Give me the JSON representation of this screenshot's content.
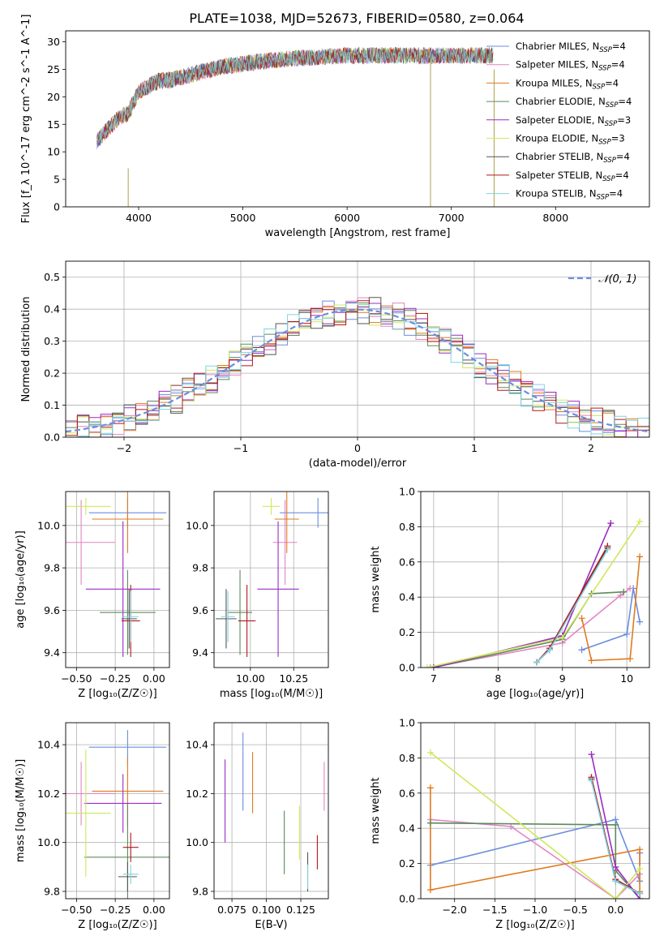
{
  "figure": {
    "title": "PLATE=1038, MJD=52673, FIBERID=0580, z=0.064"
  },
  "series_colors": {
    "Chabrier MILES": "#6b8ede",
    "Salpeter MILES": "#e384c4",
    "Kroupa MILES": "#e07a1f",
    "Chabrier ELODIE": "#5c8a5c",
    "Salpeter ELODIE": "#9b2cc4",
    "Kroupa ELODIE": "#cfe85a",
    "Chabrier STELIB": "#555555",
    "Salpeter STELIB": "#b01818",
    "Kroupa STELIB": "#7fd3e0"
  },
  "chart_data": [
    {
      "id": "spectrum",
      "type": "line",
      "title": "PLATE=1038, MJD=52673, FIBERID=0580, z=0.064",
      "xlabel": "wavelength [Angstrom, rest frame]",
      "ylabel": "Flux [f_λ 10^-17 erg cm^-2 s^-1 A^-1]",
      "xlim": [
        3300,
        8900
      ],
      "ylim": [
        0,
        32
      ],
      "xticks": [
        4000,
        5000,
        6000,
        7000,
        8000
      ],
      "yticks": [
        0,
        5,
        10,
        15,
        20,
        25,
        30
      ],
      "grid": false,
      "legend_position": "right",
      "legend": [
        {
          "label": "Chabrier MILES, N",
          "sub": "SSP",
          "suffix": "=4",
          "color": "#6b8ede"
        },
        {
          "label": "Salpeter MILES, N",
          "sub": "SSP",
          "suffix": "=4",
          "color": "#e384c4"
        },
        {
          "label": "Kroupa MILES, N",
          "sub": "SSP",
          "suffix": "=4",
          "color": "#e07a1f"
        },
        {
          "label": "Chabrier ELODIE, N",
          "sub": "SSP",
          "suffix": "=4",
          "color": "#5c8a5c"
        },
        {
          "label": "Salpeter ELODIE, N",
          "sub": "SSP",
          "suffix": "=3",
          "color": "#9b2cc4"
        },
        {
          "label": "Kroupa ELODIE, N",
          "sub": "SSP",
          "suffix": "=3",
          "color": "#cfe85a"
        },
        {
          "label": "Chabrier STELIB, N",
          "sub": "SSP",
          "suffix": "=4",
          "color": "#555555"
        },
        {
          "label": "Salpeter STELIB, N",
          "sub": "SSP",
          "suffix": "=4",
          "color": "#b01818"
        },
        {
          "label": "Kroupa STELIB, N",
          "sub": "SSP",
          "suffix": "=4",
          "color": "#7fd3e0"
        }
      ],
      "continuum_x": [
        3600,
        3700,
        3800,
        3900,
        4000,
        4100,
        4200,
        4300,
        4500,
        4800,
        5000,
        5200,
        5500,
        6000,
        6500,
        7000,
        7400
      ],
      "continuum_y": [
        12,
        14,
        16,
        17,
        21,
        22,
        23,
        23,
        24,
        25.5,
        26,
        26.5,
        27,
        27.5,
        27.5,
        27.5,
        27.5
      ],
      "noise_amplitude": 1.5,
      "artifacts": [
        {
          "x": 3900,
          "y_min": 0,
          "y_max": 7
        },
        {
          "x": 6800,
          "y_min": 0,
          "y_max": 27
        },
        {
          "x": 7410,
          "y_min": 0,
          "y_max": 25
        }
      ]
    },
    {
      "id": "residuals",
      "type": "step",
      "xlabel": "(data-model)/error",
      "ylabel": "Normed distribution",
      "xlim": [
        -2.5,
        2.5
      ],
      "ylim": [
        0,
        0.55
      ],
      "xticks": [
        -2,
        -1,
        0,
        1,
        2
      ],
      "xtick_labels": [
        "−2",
        "−1",
        "0",
        "1",
        "2"
      ],
      "yticks": [
        0,
        0.1,
        0.2,
        0.3,
        0.4,
        0.5
      ],
      "ytick_labels": [
        "0.0",
        "0.1",
        "0.2",
        "0.3",
        "0.4",
        "0.5"
      ],
      "grid": true,
      "bin_width": 0.1,
      "bin_start": -2.5,
      "reference_curve": {
        "label": "𝒩(0, 1)",
        "mean": 0,
        "sigma": 1,
        "color": "#6b8ede",
        "dashed": true
      },
      "legend_position": "top-right"
    },
    {
      "id": "age_vs_Z",
      "type": "errorbar",
      "xlabel": "Z [log₁₀(Z/Z☉)]",
      "ylabel": "age  [log₁₀(age/yr)]",
      "xlim": [
        -0.57,
        0.1
      ],
      "ylim": [
        9.33,
        10.16
      ],
      "xticks": [
        -0.5,
        -0.25,
        0
      ],
      "xtick_labels": [
        "−0.50",
        "−0.25",
        "0.00"
      ],
      "yticks": [
        9.4,
        9.6,
        9.8,
        10.0
      ],
      "ytick_labels": [
        "9.4",
        "9.6",
        "9.8",
        "10.0"
      ],
      "grid": true,
      "points": [
        {
          "series": "Chabrier MILES",
          "x": -0.17,
          "xerr": 0.25,
          "y": 10.06,
          "yerr": 0.07
        },
        {
          "series": "Salpeter MILES",
          "x": -0.47,
          "xerr": 0.22,
          "y": 9.92,
          "yerr": 0.2
        },
        {
          "series": "Kroupa MILES",
          "x": -0.17,
          "xerr": 0.23,
          "y": 10.03,
          "yerr": 0.16
        },
        {
          "series": "Chabrier ELODIE",
          "x": -0.17,
          "xerr": 0.18,
          "y": 9.59,
          "yerr": 0.2
        },
        {
          "series": "Salpeter ELODIE",
          "x": -0.2,
          "xerr": 0.24,
          "y": 9.7,
          "yerr": 0.32
        },
        {
          "series": "Kroupa ELODIE",
          "x": -0.44,
          "xerr": 0.16,
          "y": 10.09,
          "yerr": 0.04
        },
        {
          "series": "Chabrier STELIB",
          "x": -0.16,
          "xerr": 0.05,
          "y": 9.56,
          "yerr": 0.14
        },
        {
          "series": "Salpeter STELIB",
          "x": -0.15,
          "xerr": 0.06,
          "y": 9.55,
          "yerr": 0.17
        },
        {
          "series": "Kroupa STELIB",
          "x": -0.15,
          "xerr": 0.05,
          "y": 9.57,
          "yerr": 0.12
        }
      ]
    },
    {
      "id": "age_vs_mass",
      "type": "errorbar",
      "xlabel": "mass [log₁₀(M/M☉)]",
      "ylabel": "",
      "xlim": [
        9.79,
        10.45
      ],
      "ylim": [
        9.33,
        10.16
      ],
      "xticks": [
        10.0,
        10.25
      ],
      "xtick_labels": [
        "10.00",
        "10.25"
      ],
      "yticks": [
        9.4,
        9.6,
        9.8,
        10.0
      ],
      "ytick_labels": [
        "9.4",
        "9.6",
        "9.8",
        "10.0"
      ],
      "grid": true,
      "points": [
        {
          "series": "Chabrier MILES",
          "x": 10.39,
          "xerr": 0.22,
          "y": 10.06,
          "yerr": 0.07
        },
        {
          "series": "Salpeter MILES",
          "x": 10.2,
          "xerr": 0.07,
          "y": 9.92,
          "yerr": 0.2
        },
        {
          "series": "Kroupa MILES",
          "x": 10.21,
          "xerr": 0.07,
          "y": 10.03,
          "yerr": 0.16
        },
        {
          "series": "Chabrier ELODIE",
          "x": 9.94,
          "xerr": 0.07,
          "y": 9.59,
          "yerr": 0.2
        },
        {
          "series": "Salpeter ELODIE",
          "x": 10.16,
          "xerr": 0.12,
          "y": 9.7,
          "yerr": 0.32
        },
        {
          "series": "Kroupa ELODIE",
          "x": 10.12,
          "xerr": 0.05,
          "y": 10.09,
          "yerr": 0.04
        },
        {
          "series": "Chabrier STELIB",
          "x": 9.86,
          "xerr": 0.06,
          "y": 9.56,
          "yerr": 0.14
        },
        {
          "series": "Salpeter STELIB",
          "x": 9.98,
          "xerr": 0.05,
          "y": 9.55,
          "yerr": 0.17
        },
        {
          "series": "Kroupa STELIB",
          "x": 9.87,
          "xerr": 0.04,
          "y": 9.57,
          "yerr": 0.12
        }
      ]
    },
    {
      "id": "weight_vs_age",
      "type": "line",
      "xlabel": "age  [log₁₀(age/yr)]",
      "ylabel": "mass weight",
      "xlim": [
        6.8,
        10.35
      ],
      "ylim": [
        0,
        1
      ],
      "xticks": [
        7,
        8,
        9,
        10
      ],
      "yticks": [
        0,
        0.2,
        0.4,
        0.6,
        0.8,
        1.0
      ],
      "ytick_labels": [
        "0.0",
        "0.2",
        "0.4",
        "0.6",
        "0.8",
        "1.0"
      ],
      "grid": true,
      "series": [
        {
          "name": "Chabrier MILES",
          "x": [
            9.3,
            10.0,
            10.1,
            10.2
          ],
          "y": [
            0.1,
            0.19,
            0.45,
            0.26
          ]
        },
        {
          "name": "Salpeter MILES",
          "x": [
            6.95,
            9.0,
            9.9,
            10.05
          ],
          "y": [
            0.0,
            0.14,
            0.41,
            0.45
          ]
        },
        {
          "name": "Kroupa MILES",
          "x": [
            9.3,
            9.45,
            10.05,
            10.2
          ],
          "y": [
            0.28,
            0.04,
            0.05,
            0.63
          ]
        },
        {
          "name": "Chabrier ELODIE",
          "x": [
            7.0,
            9.0,
            9.45,
            9.95
          ],
          "y": [
            0.0,
            0.16,
            0.42,
            0.43
          ]
        },
        {
          "name": "Salpeter ELODIE",
          "x": [
            7.0,
            9.0,
            9.75
          ],
          "y": [
            0.0,
            0.18,
            0.82
          ]
        },
        {
          "name": "Kroupa ELODIE",
          "x": [
            6.9,
            9.0,
            10.2
          ],
          "y": [
            0.0,
            0.17,
            0.83
          ]
        },
        {
          "name": "Chabrier STELIB",
          "x": [
            8.6,
            8.8,
            9.7
          ],
          "y": [
            0.03,
            0.1,
            0.68
          ]
        },
        {
          "name": "Salpeter STELIB",
          "x": [
            8.6,
            8.8,
            9.7
          ],
          "y": [
            0.03,
            0.11,
            0.69
          ]
        },
        {
          "name": "Kroupa STELIB",
          "x": [
            8.6,
            8.8,
            9.7
          ],
          "y": [
            0.03,
            0.1,
            0.67
          ]
        }
      ]
    },
    {
      "id": "mass_vs_Z",
      "type": "errorbar",
      "xlabel": "Z [log₁₀(Z/Z☉)]",
      "ylabel": "mass [log₁₀(M/M☉)]",
      "xlim": [
        -0.57,
        0.1
      ],
      "ylim": [
        9.77,
        10.49
      ],
      "xticks": [
        -0.5,
        -0.25,
        0
      ],
      "xtick_labels": [
        "−0.50",
        "−0.25",
        "0.00"
      ],
      "yticks": [
        9.8,
        10.0,
        10.2,
        10.4
      ],
      "ytick_labels": [
        "9.8",
        "10.0",
        "10.2",
        "10.4"
      ],
      "grid": true,
      "points": [
        {
          "series": "Chabrier MILES",
          "x": -0.17,
          "xerr": 0.25,
          "y": 10.39,
          "yerr": 0.07
        },
        {
          "series": "Salpeter MILES",
          "x": -0.47,
          "xerr": 0.22,
          "y": 10.2,
          "yerr": 0.13
        },
        {
          "series": "Kroupa MILES",
          "x": -0.17,
          "xerr": 0.23,
          "y": 10.21,
          "yerr": 0.14
        },
        {
          "series": "Chabrier ELODIE",
          "x": -0.17,
          "xerr": 0.28,
          "y": 9.94,
          "yerr": 0.22
        },
        {
          "series": "Salpeter ELODIE",
          "x": -0.2,
          "xerr": 0.25,
          "y": 10.16,
          "yerr": 0.12
        },
        {
          "series": "Kroupa ELODIE",
          "x": -0.44,
          "xerr": 0.16,
          "y": 10.12,
          "yerr": 0.26
        },
        {
          "series": "Chabrier STELIB",
          "x": -0.17,
          "xerr": 0.06,
          "y": 9.86,
          "yerr": 0.06
        },
        {
          "series": "Salpeter STELIB",
          "x": -0.15,
          "xerr": 0.05,
          "y": 9.98,
          "yerr": 0.06
        },
        {
          "series": "Kroupa STELIB",
          "x": -0.15,
          "xerr": 0.05,
          "y": 9.87,
          "yerr": 0.04
        }
      ]
    },
    {
      "id": "mass_vs_ebv",
      "type": "errorbar",
      "xlabel": "E(B-V)",
      "ylabel": "",
      "xlim": [
        0.062,
        0.145
      ],
      "ylim": [
        9.77,
        10.49
      ],
      "xticks": [
        0.075,
        0.1,
        0.125
      ],
      "xtick_labels": [
        "0.075",
        "0.100",
        "0.125"
      ],
      "yticks": [
        9.8,
        10.0,
        10.2,
        10.4
      ],
      "ytick_labels": [
        "9.8",
        "10.0",
        "10.2",
        "10.4"
      ],
      "grid": true,
      "points": [
        {
          "series": "Chabrier MILES",
          "x": 0.083,
          "xerr": 0,
          "y": 10.29,
          "yerr": 0.16
        },
        {
          "series": "Salpeter MILES",
          "x": 0.142,
          "xerr": 0,
          "y": 10.23,
          "yerr": 0.1
        },
        {
          "series": "Kroupa MILES",
          "x": 0.09,
          "xerr": 0,
          "y": 10.245,
          "yerr": 0.125
        },
        {
          "series": "Chabrier ELODIE",
          "x": 0.113,
          "xerr": 0,
          "y": 10.0,
          "yerr": 0.13
        },
        {
          "series": "Salpeter ELODIE",
          "x": 0.07,
          "xerr": 0,
          "y": 10.17,
          "yerr": 0.17
        },
        {
          "series": "Kroupa ELODIE",
          "x": 0.124,
          "xerr": 0,
          "y": 10.04,
          "yerr": 0.11
        },
        {
          "series": "Chabrier STELIB",
          "x": 0.13,
          "xerr": 0,
          "y": 9.88,
          "yerr": 0.08
        },
        {
          "series": "Salpeter STELIB",
          "x": 0.137,
          "xerr": 0,
          "y": 9.96,
          "yerr": 0.07
        },
        {
          "series": "Kroupa STELIB",
          "x": 0.13,
          "xerr": 0,
          "y": 9.86,
          "yerr": 0.05
        }
      ]
    },
    {
      "id": "weight_vs_Z",
      "type": "line",
      "xlabel": "Z [log₁₀(Z/Z☉)]",
      "ylabel": "mass weight",
      "xlim": [
        -2.42,
        0.42
      ],
      "ylim": [
        0,
        1
      ],
      "xticks": [
        -2.0,
        -1.5,
        -1.0,
        -0.5,
        0.0
      ],
      "xtick_labels": [
        "−2.0",
        "−1.5",
        "−1.0",
        "−0.5",
        "0.0"
      ],
      "yticks": [
        0,
        0.2,
        0.4,
        0.6,
        0.8,
        1.0
      ],
      "ytick_labels": [
        "0.0",
        "0.2",
        "0.4",
        "0.6",
        "0.8",
        "1.0"
      ],
      "grid": true,
      "series": [
        {
          "name": "Chabrier MILES",
          "x": [
            -2.3,
            0.0,
            0.3,
            0.3
          ],
          "y": [
            0.19,
            0.45,
            0.1,
            0.26
          ]
        },
        {
          "name": "Salpeter MILES",
          "x": [
            -2.3,
            -1.3,
            0.0,
            0.3
          ],
          "y": [
            0.45,
            0.41,
            0.0,
            0.14
          ]
        },
        {
          "name": "Kroupa MILES",
          "x": [
            -2.3,
            -2.3,
            0.3,
            0.3
          ],
          "y": [
            0.63,
            0.05,
            0.28,
            0.04
          ]
        },
        {
          "name": "Chabrier ELODIE",
          "x": [
            -2.3,
            0.0,
            0.0,
            0.3
          ],
          "y": [
            0.43,
            0.42,
            0.16,
            0.0
          ]
        },
        {
          "name": "Salpeter ELODIE",
          "x": [
            -0.3,
            0.0,
            0.3
          ],
          "y": [
            0.82,
            0.18,
            0.0
          ]
        },
        {
          "name": "Kroupa ELODIE",
          "x": [
            -2.3,
            0.0,
            0.3
          ],
          "y": [
            0.83,
            0.0,
            0.17
          ]
        },
        {
          "name": "Chabrier STELIB",
          "x": [
            -0.3,
            0.0,
            0.3
          ],
          "y": [
            0.68,
            0.1,
            0.03
          ]
        },
        {
          "name": "Salpeter STELIB",
          "x": [
            -0.3,
            0.0,
            0.3
          ],
          "y": [
            0.69,
            0.11,
            0.03
          ]
        },
        {
          "name": "Kroupa STELIB",
          "x": [
            -0.3,
            0.0,
            0.3
          ],
          "y": [
            0.67,
            0.1,
            0.03
          ]
        }
      ]
    }
  ]
}
